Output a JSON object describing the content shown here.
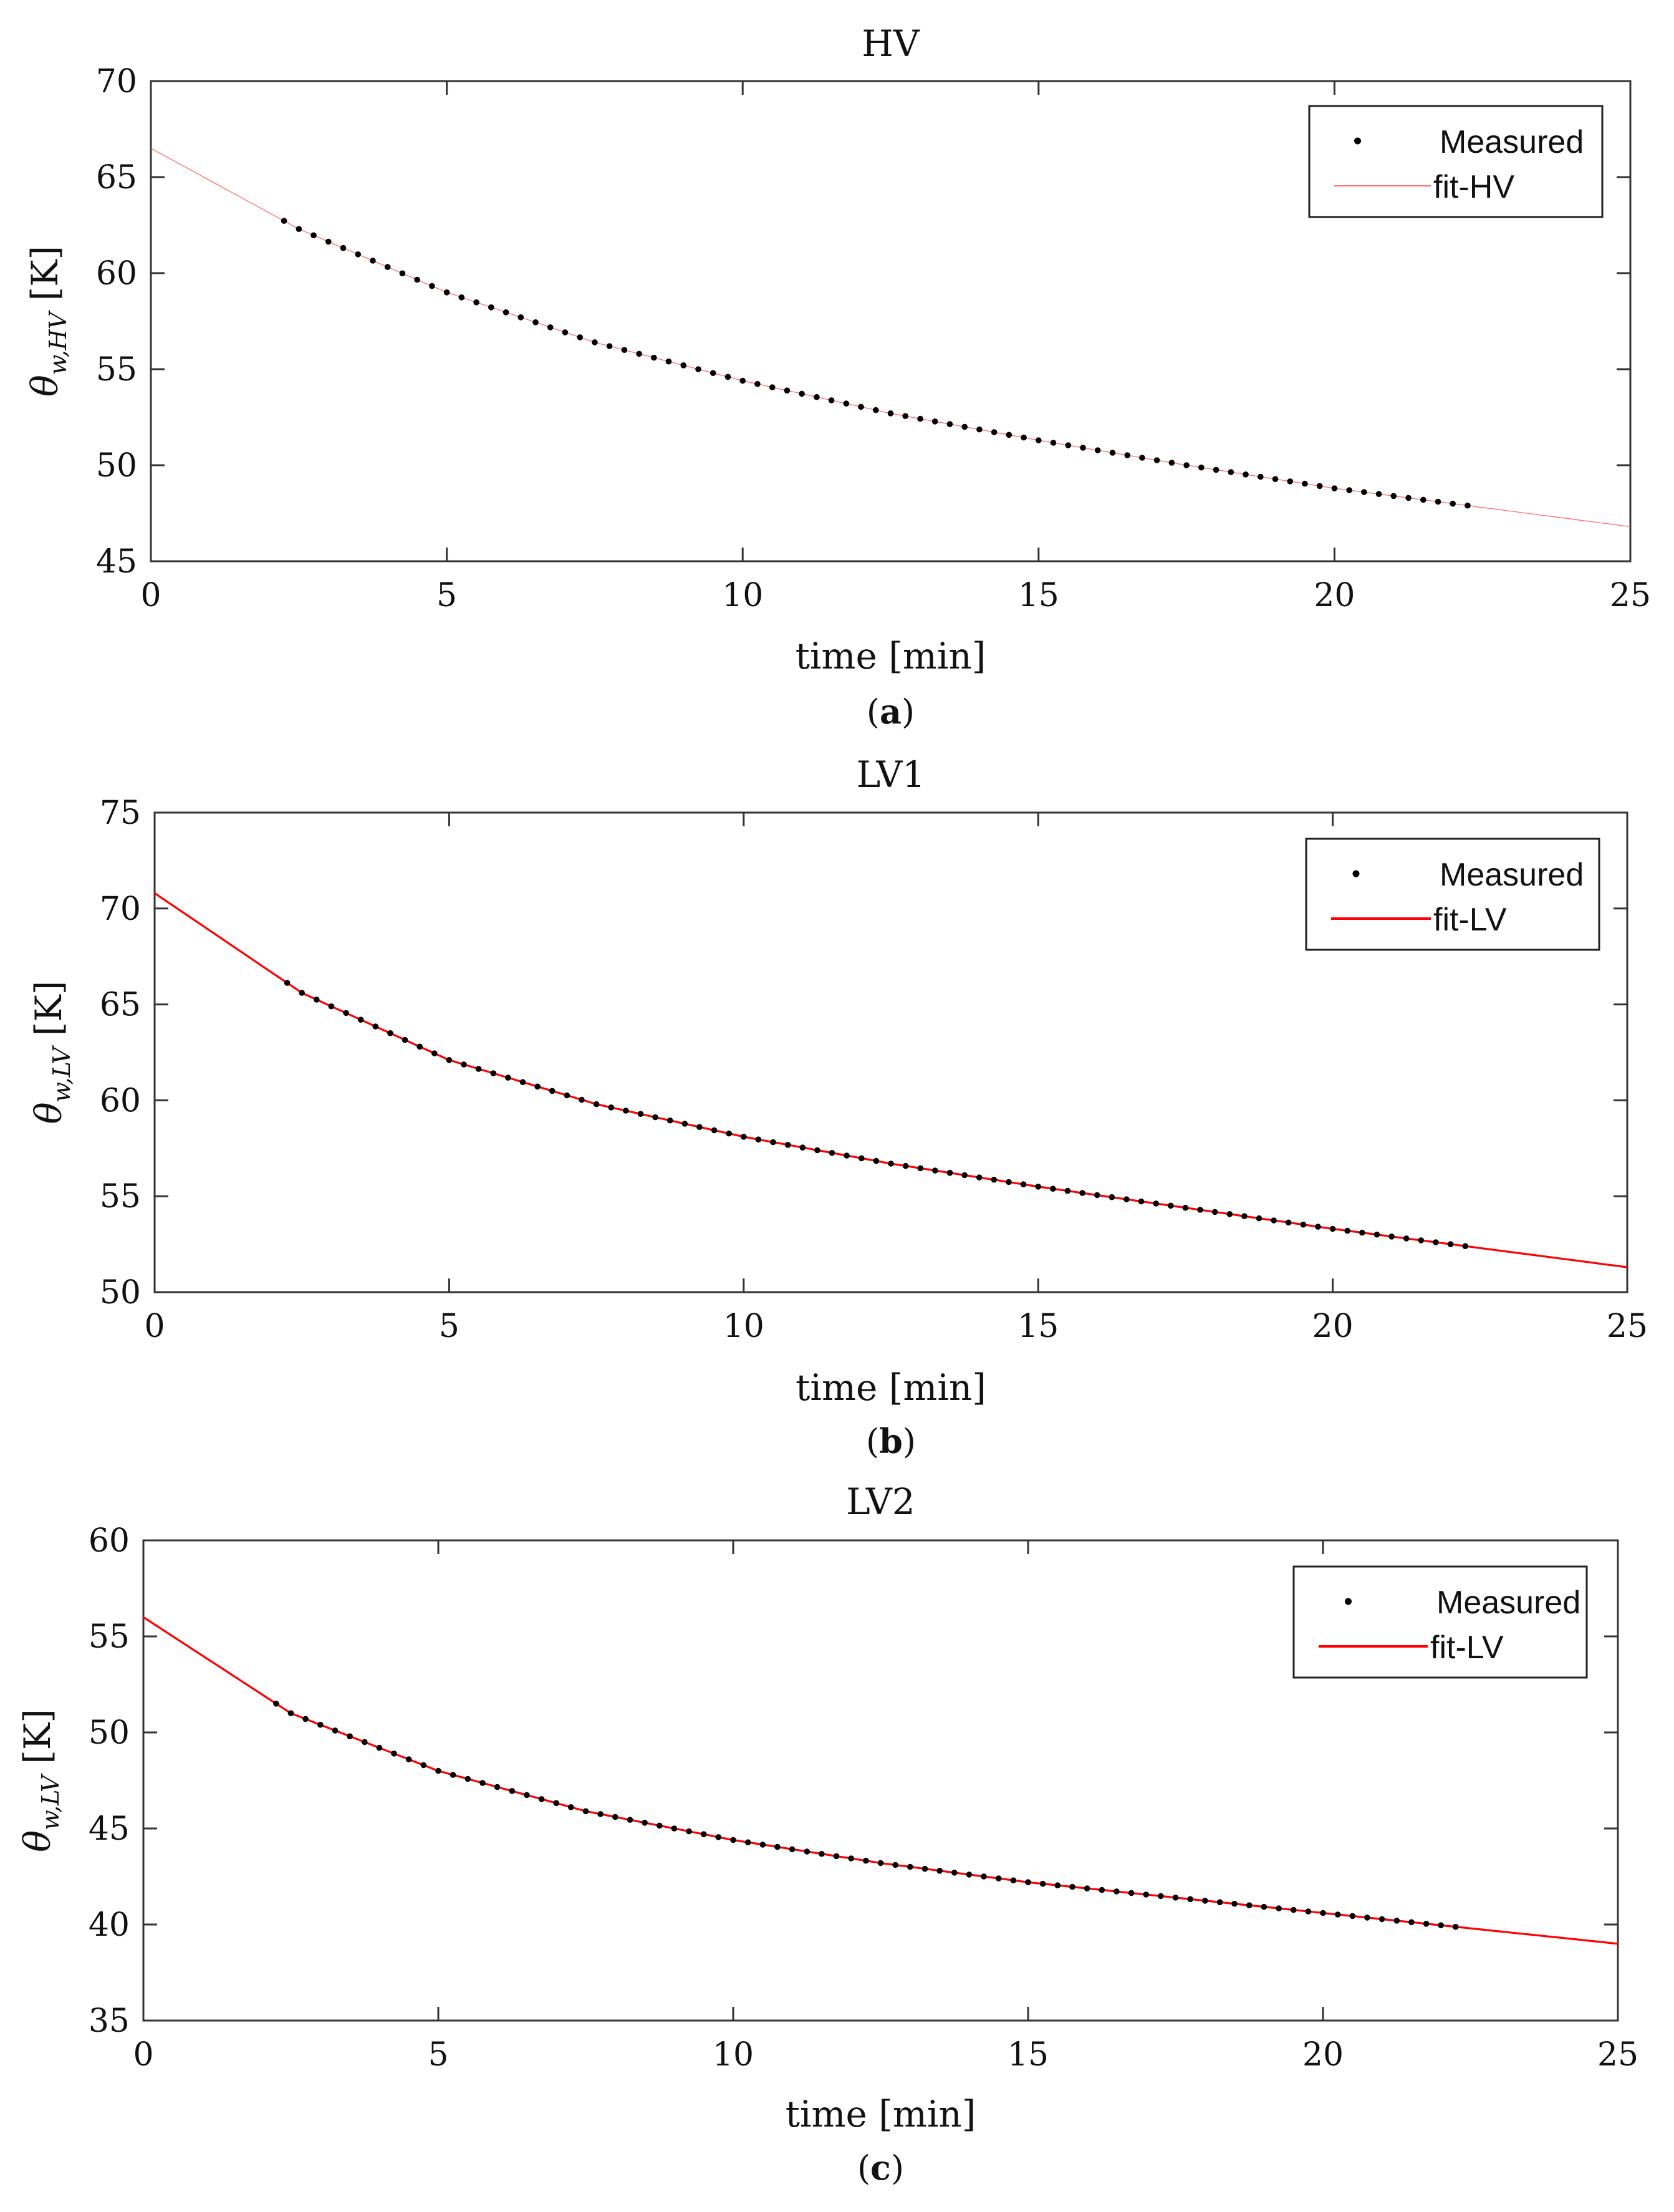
{
  "figure": {
    "panel_labels": [
      {
        "open": "(",
        "letter": "a",
        "close": ")"
      },
      {
        "open": "(",
        "letter": "b",
        "close": ")"
      },
      {
        "open": "(",
        "letter": "c",
        "close": ")"
      }
    ]
  },
  "chart_data": [
    {
      "type": "line",
      "title": "HV",
      "xlabel": "time [min]",
      "ylabel": {
        "base": "θ",
        "subscript": "w,HV",
        "unit": "[K]"
      },
      "xlim": [
        0,
        25
      ],
      "ylim": [
        45,
        70
      ],
      "xticks": [
        0,
        5,
        10,
        15,
        20,
        25
      ],
      "yticks": [
        45,
        50,
        55,
        60,
        65,
        70
      ],
      "xtick_labels": [
        "0",
        "5",
        "10",
        "15",
        "20",
        "25"
      ],
      "ytick_labels": [
        "45",
        "50",
        "55",
        "60",
        "65",
        "70"
      ],
      "grid": false,
      "legend": {
        "position": "top-right",
        "entries": [
          {
            "label": "Measured",
            "marker": "dot",
            "color": "#000000"
          },
          {
            "label": "fit-HV",
            "marker": "line",
            "color": "#ff6b6b"
          }
        ]
      },
      "series": [
        {
          "name": "Measured",
          "style": "markers",
          "color": "#000000",
          "x_range": [
            2.25,
            22.25
          ],
          "count": 81,
          "x": [
            2.25,
            5,
            10,
            15,
            20,
            22.25
          ],
          "y": [
            62.6,
            59.0,
            54.4,
            51.3,
            48.8,
            47.9
          ]
        },
        {
          "name": "fit-HV",
          "style": "line",
          "color": "#ff6b6b",
          "x": [
            0,
            2.5,
            5,
            7.5,
            10,
            12.5,
            15,
            17.5,
            20,
            22.5,
            25
          ],
          "y": [
            66.5,
            62.3,
            59.0,
            56.4,
            54.4,
            52.7,
            51.3,
            50.0,
            48.8,
            47.8,
            46.8
          ]
        }
      ]
    },
    {
      "type": "line",
      "title": "LV1",
      "xlabel": "time [min]",
      "ylabel": {
        "base": "θ",
        "subscript": "w,LV",
        "unit": "[K]"
      },
      "xlim": [
        0,
        25
      ],
      "ylim": [
        50,
        75
      ],
      "xticks": [
        0,
        5,
        10,
        15,
        20,
        25
      ],
      "yticks": [
        50,
        55,
        60,
        65,
        70,
        75
      ],
      "xtick_labels": [
        "0",
        "5",
        "10",
        "15",
        "20",
        "25"
      ],
      "ytick_labels": [
        "50",
        "55",
        "60",
        "65",
        "70",
        "75"
      ],
      "grid": false,
      "legend": {
        "position": "top-right",
        "entries": [
          {
            "label": "Measured",
            "marker": "dot",
            "color": "#000000"
          },
          {
            "label": "fit-LV",
            "marker": "line",
            "color": "#ff0000"
          }
        ]
      },
      "series": [
        {
          "name": "Measured",
          "style": "markers",
          "color": "#000000",
          "x_range": [
            2.25,
            22.25
          ],
          "count": 81,
          "x": [
            2.25,
            5,
            10,
            15,
            20,
            22.25
          ],
          "y": [
            65.9,
            62.1,
            58.1,
            55.5,
            53.3,
            52.4
          ]
        },
        {
          "name": "fit-LV",
          "style": "line",
          "color": "#ff0000",
          "x": [
            0,
            2.5,
            5,
            7.5,
            10,
            12.5,
            15,
            17.5,
            20,
            22.5,
            25
          ],
          "y": [
            70.8,
            65.6,
            62.1,
            59.8,
            58.1,
            56.7,
            55.5,
            54.4,
            53.3,
            52.3,
            51.3
          ]
        }
      ]
    },
    {
      "type": "line",
      "title": "LV2",
      "xlabel": "time [min]",
      "ylabel": {
        "base": "θ",
        "subscript": "w,LV",
        "unit": "[K]"
      },
      "xlim": [
        0,
        25
      ],
      "ylim": [
        35,
        60
      ],
      "xticks": [
        0,
        5,
        10,
        15,
        20,
        25
      ],
      "yticks": [
        35,
        40,
        45,
        50,
        55,
        60
      ],
      "xtick_labels": [
        "0",
        "5",
        "10",
        "15",
        "20",
        "25"
      ],
      "ytick_labels": [
        "35",
        "40",
        "45",
        "50",
        "55",
        "60"
      ],
      "grid": false,
      "legend": {
        "position": "top-right",
        "entries": [
          {
            "label": "Measured",
            "marker": "dot",
            "color": "#000000"
          },
          {
            "label": "fit-LV",
            "marker": "line",
            "color": "#ff0000"
          }
        ]
      },
      "series": [
        {
          "name": "Measured",
          "style": "markers",
          "color": "#000000",
          "x_range": [
            2.25,
            22.25
          ],
          "count": 81,
          "x": [
            2.25,
            5,
            10,
            15,
            20,
            22.25
          ],
          "y": [
            51.4,
            48.0,
            44.4,
            42.2,
            40.6,
            39.9
          ]
        },
        {
          "name": "fit-LV",
          "style": "line",
          "color": "#ff0000",
          "x": [
            0,
            2.5,
            5,
            7.5,
            10,
            12.5,
            15,
            17.5,
            20,
            22.5,
            25
          ],
          "y": [
            56.0,
            51.0,
            48.0,
            45.9,
            44.4,
            43.2,
            42.2,
            41.4,
            40.6,
            39.8,
            39.0
          ]
        }
      ]
    }
  ]
}
